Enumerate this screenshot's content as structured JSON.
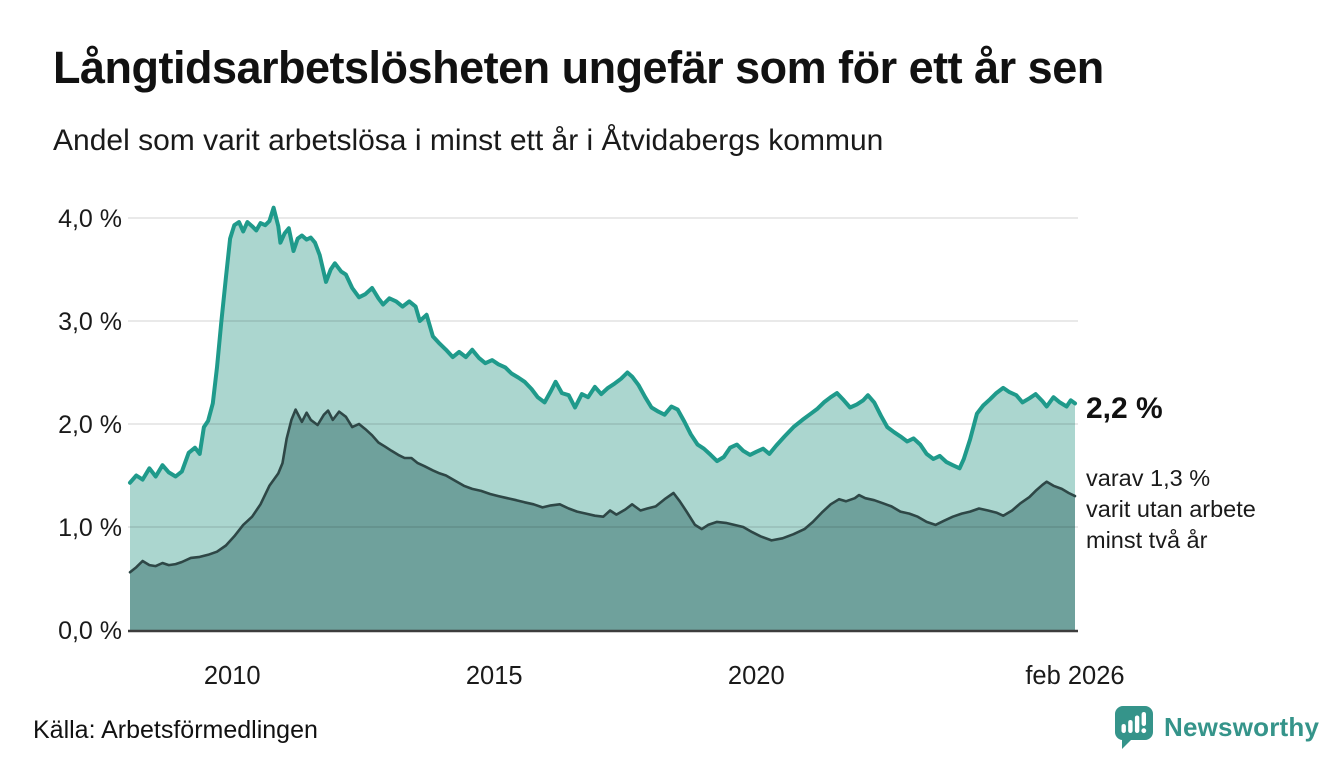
{
  "header": {
    "title": "Långtidsarbetslösheten ungefär som för ett år sen",
    "subtitle": "Andel som varit arbetslösa i minst ett år i Åtvidabergs kommun"
  },
  "annotations": {
    "latest_total": "2,2 %",
    "latest_two_years": "varav 1,3 %\nvarit utan arbete\nminst två år"
  },
  "footer": {
    "source": "Källa: Arbetsförmedlingen",
    "brand_name": "Newsworthy"
  },
  "colors": {
    "teal_line": "#1f9a8b",
    "teal_fill": "#abd6cf",
    "dark_line": "#2e4746",
    "dark_fill": "#6fa19c",
    "grid": "rgba(0,0,0,0.085)",
    "axis_baseline": "#3d3d3d",
    "text": "#1a1a1a",
    "brand_teal": "#35948a"
  },
  "chart_data": {
    "type": "area",
    "title": "Långtidsarbetslösheten ungefär som för ett år sen",
    "xlabel": "",
    "ylabel": "Andel som varit arbetslösa i minst ett år (%)",
    "grid": true,
    "legend_position": "annotation-right",
    "xlim": [
      2008.05,
      2026.1
    ],
    "ylim": [
      0,
      4.25
    ],
    "y_ticks": [
      {
        "value": 4.0,
        "label": "4,0 %"
      },
      {
        "value": 3.0,
        "label": "3,0 %"
      },
      {
        "value": 2.0,
        "label": "2,0 %"
      },
      {
        "value": 1.0,
        "label": "1,0 %"
      },
      {
        "value": 0.0,
        "label": "0,0 %"
      }
    ],
    "x_ticks": [
      {
        "value": 2010.0,
        "label": "2010"
      },
      {
        "value": 2015.0,
        "label": "2015"
      },
      {
        "value": 2020.0,
        "label": "2020"
      },
      {
        "value": 2026.08,
        "label": "feb 2026"
      }
    ],
    "series": [
      {
        "name": "Andel arbetslösa minst ett år",
        "end_value_label": "2,2 %",
        "points": [
          [
            2008.05,
            1.43
          ],
          [
            2008.17,
            1.5
          ],
          [
            2008.29,
            1.46
          ],
          [
            2008.42,
            1.57
          ],
          [
            2008.54,
            1.49
          ],
          [
            2008.67,
            1.6
          ],
          [
            2008.79,
            1.53
          ],
          [
            2008.92,
            1.49
          ],
          [
            2009.04,
            1.54
          ],
          [
            2009.17,
            1.72
          ],
          [
            2009.29,
            1.77
          ],
          [
            2009.38,
            1.71
          ],
          [
            2009.46,
            1.97
          ],
          [
            2009.54,
            2.03
          ],
          [
            2009.63,
            2.2
          ],
          [
            2009.71,
            2.55
          ],
          [
            2009.79,
            2.98
          ],
          [
            2009.88,
            3.42
          ],
          [
            2009.96,
            3.8
          ],
          [
            2010.04,
            3.93
          ],
          [
            2010.13,
            3.96
          ],
          [
            2010.21,
            3.87
          ],
          [
            2010.29,
            3.96
          ],
          [
            2010.38,
            3.92
          ],
          [
            2010.46,
            3.88
          ],
          [
            2010.54,
            3.95
          ],
          [
            2010.63,
            3.93
          ],
          [
            2010.71,
            3.97
          ],
          [
            2010.79,
            4.1
          ],
          [
            2010.88,
            3.92
          ],
          [
            2010.92,
            3.76
          ],
          [
            2011.0,
            3.85
          ],
          [
            2011.08,
            3.9
          ],
          [
            2011.17,
            3.68
          ],
          [
            2011.25,
            3.8
          ],
          [
            2011.33,
            3.83
          ],
          [
            2011.42,
            3.79
          ],
          [
            2011.5,
            3.81
          ],
          [
            2011.58,
            3.76
          ],
          [
            2011.67,
            3.64
          ],
          [
            2011.79,
            3.38
          ],
          [
            2011.88,
            3.5
          ],
          [
            2011.96,
            3.56
          ],
          [
            2012.08,
            3.48
          ],
          [
            2012.17,
            3.45
          ],
          [
            2012.29,
            3.32
          ],
          [
            2012.42,
            3.23
          ],
          [
            2012.54,
            3.26
          ],
          [
            2012.67,
            3.32
          ],
          [
            2012.79,
            3.22
          ],
          [
            2012.88,
            3.16
          ],
          [
            2013.0,
            3.22
          ],
          [
            2013.13,
            3.19
          ],
          [
            2013.25,
            3.14
          ],
          [
            2013.38,
            3.19
          ],
          [
            2013.5,
            3.14
          ],
          [
            2013.58,
            3.0
          ],
          [
            2013.71,
            3.06
          ],
          [
            2013.83,
            2.85
          ],
          [
            2013.96,
            2.78
          ],
          [
            2014.08,
            2.72
          ],
          [
            2014.21,
            2.65
          ],
          [
            2014.33,
            2.7
          ],
          [
            2014.46,
            2.65
          ],
          [
            2014.58,
            2.72
          ],
          [
            2014.71,
            2.64
          ],
          [
            2014.83,
            2.59
          ],
          [
            2014.96,
            2.62
          ],
          [
            2015.08,
            2.58
          ],
          [
            2015.21,
            2.55
          ],
          [
            2015.33,
            2.49
          ],
          [
            2015.46,
            2.45
          ],
          [
            2015.58,
            2.41
          ],
          [
            2015.71,
            2.34
          ],
          [
            2015.83,
            2.26
          ],
          [
            2015.96,
            2.21
          ],
          [
            2016.08,
            2.32
          ],
          [
            2016.17,
            2.41
          ],
          [
            2016.29,
            2.3
          ],
          [
            2016.42,
            2.28
          ],
          [
            2016.54,
            2.16
          ],
          [
            2016.67,
            2.29
          ],
          [
            2016.79,
            2.26
          ],
          [
            2016.92,
            2.36
          ],
          [
            2017.04,
            2.29
          ],
          [
            2017.17,
            2.35
          ],
          [
            2017.29,
            2.39
          ],
          [
            2017.42,
            2.44
          ],
          [
            2017.54,
            2.5
          ],
          [
            2017.63,
            2.46
          ],
          [
            2017.75,
            2.38
          ],
          [
            2017.88,
            2.26
          ],
          [
            2018.0,
            2.16
          ],
          [
            2018.13,
            2.12
          ],
          [
            2018.25,
            2.09
          ],
          [
            2018.38,
            2.17
          ],
          [
            2018.5,
            2.14
          ],
          [
            2018.63,
            2.02
          ],
          [
            2018.75,
            1.9
          ],
          [
            2018.88,
            1.8
          ],
          [
            2019.0,
            1.76
          ],
          [
            2019.13,
            1.7
          ],
          [
            2019.25,
            1.64
          ],
          [
            2019.38,
            1.68
          ],
          [
            2019.5,
            1.77
          ],
          [
            2019.63,
            1.8
          ],
          [
            2019.75,
            1.74
          ],
          [
            2019.88,
            1.7
          ],
          [
            2020.0,
            1.73
          ],
          [
            2020.13,
            1.76
          ],
          [
            2020.25,
            1.71
          ],
          [
            2020.38,
            1.79
          ],
          [
            2020.54,
            1.88
          ],
          [
            2020.71,
            1.97
          ],
          [
            2020.88,
            2.04
          ],
          [
            2021.04,
            2.1
          ],
          [
            2021.17,
            2.15
          ],
          [
            2021.29,
            2.21
          ],
          [
            2021.42,
            2.26
          ],
          [
            2021.54,
            2.3
          ],
          [
            2021.67,
            2.23
          ],
          [
            2021.79,
            2.16
          ],
          [
            2021.92,
            2.19
          ],
          [
            2022.04,
            2.23
          ],
          [
            2022.13,
            2.28
          ],
          [
            2022.25,
            2.21
          ],
          [
            2022.38,
            2.08
          ],
          [
            2022.5,
            1.97
          ],
          [
            2022.63,
            1.92
          ],
          [
            2022.75,
            1.88
          ],
          [
            2022.88,
            1.83
          ],
          [
            2023.0,
            1.86
          ],
          [
            2023.13,
            1.8
          ],
          [
            2023.25,
            1.71
          ],
          [
            2023.38,
            1.66
          ],
          [
            2023.5,
            1.69
          ],
          [
            2023.63,
            1.63
          ],
          [
            2023.75,
            1.6
          ],
          [
            2023.88,
            1.57
          ],
          [
            2023.96,
            1.66
          ],
          [
            2024.08,
            1.85
          ],
          [
            2024.21,
            2.1
          ],
          [
            2024.33,
            2.18
          ],
          [
            2024.46,
            2.24
          ],
          [
            2024.58,
            2.3
          ],
          [
            2024.71,
            2.35
          ],
          [
            2024.83,
            2.31
          ],
          [
            2024.96,
            2.28
          ],
          [
            2025.08,
            2.21
          ],
          [
            2025.21,
            2.25
          ],
          [
            2025.33,
            2.29
          ],
          [
            2025.46,
            2.22
          ],
          [
            2025.54,
            2.17
          ],
          [
            2025.67,
            2.26
          ],
          [
            2025.79,
            2.21
          ],
          [
            2025.92,
            2.17
          ],
          [
            2026.0,
            2.23
          ],
          [
            2026.08,
            2.2
          ]
        ]
      },
      {
        "name": "varav utan arbete minst två år",
        "end_value_label": "1,3 %",
        "points": [
          [
            2008.05,
            0.56
          ],
          [
            2008.17,
            0.61
          ],
          [
            2008.29,
            0.67
          ],
          [
            2008.42,
            0.63
          ],
          [
            2008.54,
            0.62
          ],
          [
            2008.67,
            0.65
          ],
          [
            2008.79,
            0.63
          ],
          [
            2008.92,
            0.64
          ],
          [
            2009.04,
            0.66
          ],
          [
            2009.21,
            0.7
          ],
          [
            2009.38,
            0.71
          ],
          [
            2009.54,
            0.73
          ],
          [
            2009.71,
            0.76
          ],
          [
            2009.88,
            0.82
          ],
          [
            2010.04,
            0.91
          ],
          [
            2010.21,
            1.02
          ],
          [
            2010.38,
            1.1
          ],
          [
            2010.54,
            1.22
          ],
          [
            2010.71,
            1.4
          ],
          [
            2010.88,
            1.52
          ],
          [
            2010.96,
            1.62
          ],
          [
            2011.04,
            1.86
          ],
          [
            2011.13,
            2.04
          ],
          [
            2011.21,
            2.14
          ],
          [
            2011.33,
            2.02
          ],
          [
            2011.42,
            2.11
          ],
          [
            2011.5,
            2.04
          ],
          [
            2011.63,
            1.99
          ],
          [
            2011.75,
            2.09
          ],
          [
            2011.83,
            2.13
          ],
          [
            2011.92,
            2.04
          ],
          [
            2012.04,
            2.12
          ],
          [
            2012.17,
            2.07
          ],
          [
            2012.29,
            1.97
          ],
          [
            2012.42,
            2.0
          ],
          [
            2012.54,
            1.95
          ],
          [
            2012.67,
            1.89
          ],
          [
            2012.79,
            1.82
          ],
          [
            2012.92,
            1.78
          ],
          [
            2013.04,
            1.74
          ],
          [
            2013.17,
            1.7
          ],
          [
            2013.29,
            1.67
          ],
          [
            2013.42,
            1.67
          ],
          [
            2013.54,
            1.62
          ],
          [
            2013.67,
            1.59
          ],
          [
            2013.83,
            1.55
          ],
          [
            2013.96,
            1.52
          ],
          [
            2014.08,
            1.5
          ],
          [
            2014.25,
            1.45
          ],
          [
            2014.42,
            1.4
          ],
          [
            2014.58,
            1.37
          ],
          [
            2014.75,
            1.35
          ],
          [
            2014.92,
            1.32
          ],
          [
            2015.08,
            1.3
          ],
          [
            2015.25,
            1.28
          ],
          [
            2015.42,
            1.26
          ],
          [
            2015.58,
            1.24
          ],
          [
            2015.75,
            1.22
          ],
          [
            2015.92,
            1.19
          ],
          [
            2016.08,
            1.21
          ],
          [
            2016.25,
            1.22
          ],
          [
            2016.42,
            1.18
          ],
          [
            2016.58,
            1.15
          ],
          [
            2016.75,
            1.13
          ],
          [
            2016.92,
            1.11
          ],
          [
            2017.08,
            1.1
          ],
          [
            2017.21,
            1.16
          ],
          [
            2017.33,
            1.12
          ],
          [
            2017.5,
            1.17
          ],
          [
            2017.63,
            1.22
          ],
          [
            2017.79,
            1.16
          ],
          [
            2017.92,
            1.18
          ],
          [
            2018.08,
            1.2
          ],
          [
            2018.25,
            1.27
          ],
          [
            2018.42,
            1.33
          ],
          [
            2018.54,
            1.25
          ],
          [
            2018.67,
            1.15
          ],
          [
            2018.83,
            1.02
          ],
          [
            2018.96,
            0.98
          ],
          [
            2019.08,
            1.02
          ],
          [
            2019.25,
            1.05
          ],
          [
            2019.42,
            1.04
          ],
          [
            2019.58,
            1.02
          ],
          [
            2019.75,
            1.0
          ],
          [
            2019.92,
            0.95
          ],
          [
            2020.08,
            0.91
          ],
          [
            2020.29,
            0.87
          ],
          [
            2020.5,
            0.89
          ],
          [
            2020.71,
            0.93
          ],
          [
            2020.92,
            0.98
          ],
          [
            2021.08,
            1.05
          ],
          [
            2021.25,
            1.14
          ],
          [
            2021.42,
            1.22
          ],
          [
            2021.58,
            1.27
          ],
          [
            2021.71,
            1.25
          ],
          [
            2021.88,
            1.28
          ],
          [
            2021.96,
            1.31
          ],
          [
            2022.08,
            1.28
          ],
          [
            2022.25,
            1.26
          ],
          [
            2022.42,
            1.23
          ],
          [
            2022.58,
            1.2
          ],
          [
            2022.75,
            1.15
          ],
          [
            2022.92,
            1.13
          ],
          [
            2023.08,
            1.1
          ],
          [
            2023.25,
            1.05
          ],
          [
            2023.42,
            1.02
          ],
          [
            2023.58,
            1.06
          ],
          [
            2023.75,
            1.1
          ],
          [
            2023.92,
            1.13
          ],
          [
            2024.08,
            1.15
          ],
          [
            2024.25,
            1.18
          ],
          [
            2024.42,
            1.16
          ],
          [
            2024.58,
            1.14
          ],
          [
            2024.71,
            1.11
          ],
          [
            2024.88,
            1.16
          ],
          [
            2025.04,
            1.23
          ],
          [
            2025.21,
            1.29
          ],
          [
            2025.33,
            1.35
          ],
          [
            2025.46,
            1.41
          ],
          [
            2025.54,
            1.44
          ],
          [
            2025.67,
            1.4
          ],
          [
            2025.83,
            1.37
          ],
          [
            2025.96,
            1.33
          ],
          [
            2026.08,
            1.3
          ]
        ]
      }
    ]
  }
}
